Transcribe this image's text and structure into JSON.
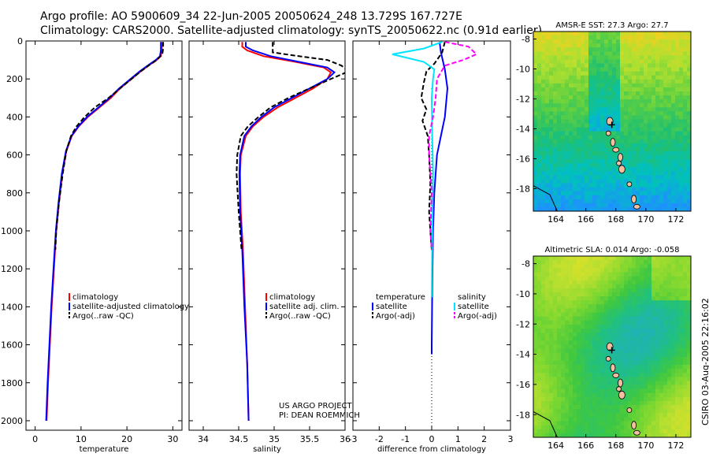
{
  "header": {
    "title_line1": "Argo profile: AO 5900609_34 22-Jun-2005 20050624_248 13.729S 167.727E",
    "title_line2": "Climatology: CARS2000. Satellite-adjusted climatology: synTS_20050622.nc (0.91d earlier)"
  },
  "colors": {
    "climatology": "#ff0000",
    "satellite": "#0000ff",
    "argo": "#000000",
    "salinity_satellite": "#00e5ff",
    "salinity_argo": "#ff00ff"
  },
  "chart_data": [
    {
      "id": "temperature",
      "type": "line",
      "xlabel": "temperature",
      "ylabel": "",
      "xlim": [
        -2,
        32
      ],
      "ylim": [
        2050,
        0
      ],
      "xticks": [
        0,
        10,
        20,
        30
      ],
      "yticks": [
        0,
        200,
        400,
        600,
        800,
        1000,
        1200,
        1400,
        1600,
        1800,
        2000
      ],
      "legend": [
        "climatology",
        "satellite-adjusted climatology",
        "Argo(..raw -QC)"
      ],
      "series": [
        {
          "name": "climatology",
          "color": "#ff0000",
          "dash": "",
          "points": [
            [
              27.6,
              5
            ],
            [
              27.6,
              50
            ],
            [
              27.4,
              80
            ],
            [
              26.5,
              100
            ],
            [
              25,
              125
            ],
            [
              23,
              160
            ],
            [
              21,
              200
            ],
            [
              18.5,
              250
            ],
            [
              16.5,
              300
            ],
            [
              14,
              350
            ],
            [
              11.5,
              400
            ],
            [
              9.5,
              450
            ],
            [
              8,
              500
            ],
            [
              6.8,
              580
            ],
            [
              5.9,
              700
            ],
            [
              5.2,
              850
            ],
            [
              4.6,
              1000
            ],
            [
              4.1,
              1200
            ],
            [
              3.6,
              1400
            ],
            [
              3.2,
              1600
            ],
            [
              2.8,
              1800
            ],
            [
              2.5,
              2000
            ]
          ]
        },
        {
          "name": "satellite-adjusted climatology",
          "color": "#0000ff",
          "dash": "",
          "points": [
            [
              27.4,
              5
            ],
            [
              27.4,
              50
            ],
            [
              27.2,
              80
            ],
            [
              26.3,
              100
            ],
            [
              24.8,
              125
            ],
            [
              22.8,
              160
            ],
            [
              20.8,
              200
            ],
            [
              18.3,
              250
            ],
            [
              16.2,
              300
            ],
            [
              13.8,
              350
            ],
            [
              11.3,
              400
            ],
            [
              9.4,
              450
            ],
            [
              7.9,
              500
            ],
            [
              6.7,
              580
            ],
            [
              5.8,
              700
            ],
            [
              5.1,
              850
            ],
            [
              4.5,
              1000
            ],
            [
              4,
              1200
            ],
            [
              3.5,
              1400
            ],
            [
              3.1,
              1600
            ],
            [
              2.7,
              1800
            ],
            [
              2.4,
              2000
            ]
          ]
        },
        {
          "name": "Argo(..raw -QC)",
          "color": "#000000",
          "dash": "6,3",
          "points": [
            [
              27.9,
              5
            ],
            [
              27.9,
              40
            ],
            [
              27.7,
              70
            ],
            [
              26.5,
              100
            ],
            [
              25,
              125
            ],
            [
              23,
              160
            ],
            [
              21,
              200
            ],
            [
              18.5,
              250
            ],
            [
              16,
              300
            ],
            [
              13,
              350
            ],
            [
              10.8,
              400
            ],
            [
              9,
              450
            ],
            [
              7.8,
              500
            ],
            [
              6.8,
              580
            ],
            [
              6,
              700
            ],
            [
              5.2,
              850
            ],
            [
              4.6,
              1000
            ],
            [
              4.4,
              1100
            ]
          ]
        }
      ]
    },
    {
      "id": "salinity",
      "type": "line",
      "xlabel": "salinity",
      "ylabel": "",
      "xlim": [
        33.8,
        36
      ],
      "ylim": [
        2050,
        0
      ],
      "xticks": [
        34,
        34.5,
        35,
        35.5,
        36
      ],
      "xtick_labels": [
        "34",
        "34.5",
        "35",
        "35.5",
        "36"
      ],
      "legend": [
        "climatology",
        "satellite adj. clim.",
        "Argo(..raw -QC)"
      ],
      "annotation": [
        "US ARGO PROJECT",
        "PI: DEAN ROEMMICH"
      ],
      "series": [
        {
          "name": "climatology",
          "color": "#ff0000",
          "dash": "",
          "points": [
            [
              34.55,
              5
            ],
            [
              34.55,
              30
            ],
            [
              34.62,
              50
            ],
            [
              34.85,
              80
            ],
            [
              35.3,
              110
            ],
            [
              35.7,
              140
            ],
            [
              35.8,
              165
            ],
            [
              35.75,
              200
            ],
            [
              35.55,
              250
            ],
            [
              35.3,
              300
            ],
            [
              35.05,
              350
            ],
            [
              34.85,
              400
            ],
            [
              34.7,
              450
            ],
            [
              34.6,
              500
            ],
            [
              34.53,
              600
            ],
            [
              34.52,
              700
            ],
            [
              34.53,
              900
            ],
            [
              34.56,
              1100
            ],
            [
              34.59,
              1400
            ],
            [
              34.62,
              1700
            ],
            [
              34.64,
              2000
            ]
          ]
        },
        {
          "name": "satellite adj. clim.",
          "color": "#0000ff",
          "dash": "",
          "points": [
            [
              34.6,
              5
            ],
            [
              34.6,
              30
            ],
            [
              34.7,
              50
            ],
            [
              34.95,
              80
            ],
            [
              35.35,
              110
            ],
            [
              35.75,
              140
            ],
            [
              35.85,
              165
            ],
            [
              35.75,
              200
            ],
            [
              35.5,
              250
            ],
            [
              35.25,
              300
            ],
            [
              35,
              350
            ],
            [
              34.82,
              400
            ],
            [
              34.68,
              450
            ],
            [
              34.58,
              500
            ],
            [
              34.52,
              600
            ],
            [
              34.51,
              700
            ],
            [
              34.52,
              900
            ],
            [
              34.55,
              1100
            ],
            [
              34.58,
              1400
            ],
            [
              34.62,
              1700
            ],
            [
              34.64,
              2000
            ]
          ]
        },
        {
          "name": "Argo(..raw -QC)",
          "color": "#000000",
          "dash": "6,3",
          "points": [
            [
              34.98,
              5
            ],
            [
              34.98,
              60
            ],
            [
              35.35,
              80
            ],
            [
              35.75,
              100
            ],
            [
              35.95,
              130
            ],
            [
              36.05,
              160
            ],
            [
              35.8,
              200
            ],
            [
              35.5,
              250
            ],
            [
              35.2,
              300
            ],
            [
              34.95,
              350
            ],
            [
              34.78,
              400
            ],
            [
              34.63,
              450
            ],
            [
              34.53,
              500
            ],
            [
              34.48,
              600
            ],
            [
              34.47,
              700
            ],
            [
              34.5,
              900
            ],
            [
              34.54,
              1100
            ]
          ]
        }
      ]
    },
    {
      "id": "difference",
      "type": "line",
      "xlabel": "difference from climatology",
      "ylabel": "",
      "xlim": [
        -3,
        3
      ],
      "ylim": [
        2050,
        0
      ],
      "xticks": [
        -3,
        -2,
        -1,
        0,
        1,
        2,
        3
      ],
      "legend_left": [
        "temperature",
        "satellite",
        "Argo(-adj)"
      ],
      "legend_right": [
        "salinity",
        "satellite",
        "Argo(-adj)"
      ],
      "series": [
        {
          "name": "temperature satellite",
          "color": "#0000ff",
          "dash": "",
          "points": [
            [
              0.3,
              5
            ],
            [
              0.35,
              60
            ],
            [
              0.5,
              150
            ],
            [
              0.6,
              250
            ],
            [
              0.5,
              400
            ],
            [
              0.35,
              500
            ],
            [
              0.2,
              600
            ],
            [
              0.1,
              800
            ],
            [
              0.05,
              1000
            ],
            [
              0.02,
              1300
            ],
            [
              0,
              1600
            ],
            [
              0,
              1650
            ]
          ]
        },
        {
          "name": "temperature Argo(-adj)",
          "color": "#000000",
          "dash": "6,3",
          "points": [
            [
              0.5,
              5
            ],
            [
              0.4,
              60
            ],
            [
              0.1,
              120
            ],
            [
              -0.2,
              160
            ],
            [
              -0.3,
              220
            ],
            [
              -0.4,
              300
            ],
            [
              -0.2,
              360
            ],
            [
              -0.35,
              420
            ],
            [
              -0.15,
              500
            ],
            [
              -0.1,
              600
            ],
            [
              -0.05,
              750
            ],
            [
              -0.1,
              900
            ],
            [
              -0.05,
              1000
            ],
            [
              0,
              1100
            ]
          ]
        },
        {
          "name": "salinity satellite",
          "color": "#00e5ff",
          "dash": "",
          "points": [
            [
              0.4,
              5
            ],
            [
              -0.3,
              40
            ],
            [
              -1.5,
              70
            ],
            [
              -0.3,
              110
            ],
            [
              0.1,
              150
            ],
            [
              0.05,
              200
            ],
            [
              0,
              300
            ],
            [
              0.02,
              500
            ],
            [
              0.05,
              700
            ],
            [
              0.02,
              1000
            ],
            [
              0,
              1350
            ]
          ]
        },
        {
          "name": "salinity Argo(-adj)",
          "color": "#ff00ff",
          "dash": "6,3",
          "points": [
            [
              0.5,
              5
            ],
            [
              1.4,
              30
            ],
            [
              1.7,
              70
            ],
            [
              1.2,
              100
            ],
            [
              0.5,
              130
            ],
            [
              0.2,
              200
            ],
            [
              0.15,
              300
            ],
            [
              0.05,
              400
            ],
            [
              -0.1,
              500
            ],
            [
              -0.1,
              600
            ],
            [
              0,
              800
            ],
            [
              -0.05,
              1000
            ],
            [
              0,
              1100
            ]
          ]
        }
      ]
    },
    {
      "id": "sst_map",
      "type": "heatmap",
      "title": "AMSR-E SST: 27.3 Argo: 27.7",
      "xlim": [
        162.5,
        173
      ],
      "ylim": [
        -19.5,
        -7.5
      ],
      "xticks": [
        164,
        166,
        168,
        170,
        172
      ],
      "yticks": [
        -8,
        -10,
        -12,
        -14,
        -16,
        -18
      ],
      "argo_position": [
        167.73,
        -13.73
      ],
      "color_stops": [
        "#1e90ff",
        "#00c0c0",
        "#20c070",
        "#60d040",
        "#b0e030",
        "#f0d020",
        "#f8a000"
      ]
    },
    {
      "id": "sla_map",
      "type": "heatmap",
      "title": "Altimetric SLA: 0.014 Argo: -0.058",
      "xlim": [
        162.5,
        173
      ],
      "ylim": [
        -19.5,
        -7.5
      ],
      "xticks": [
        164,
        166,
        168,
        170,
        172
      ],
      "yticks": [
        -8,
        -10,
        -12,
        -14,
        -16,
        -18
      ],
      "argo_position": [
        167.73,
        -13.73
      ],
      "color_stops": [
        "#20b0c0",
        "#20c080",
        "#40c840",
        "#80d830",
        "#c0e030",
        "#f0e020"
      ]
    }
  ],
  "footer": {
    "timestamp": "CSIRO 03-Aug-2005 22:16:02"
  }
}
